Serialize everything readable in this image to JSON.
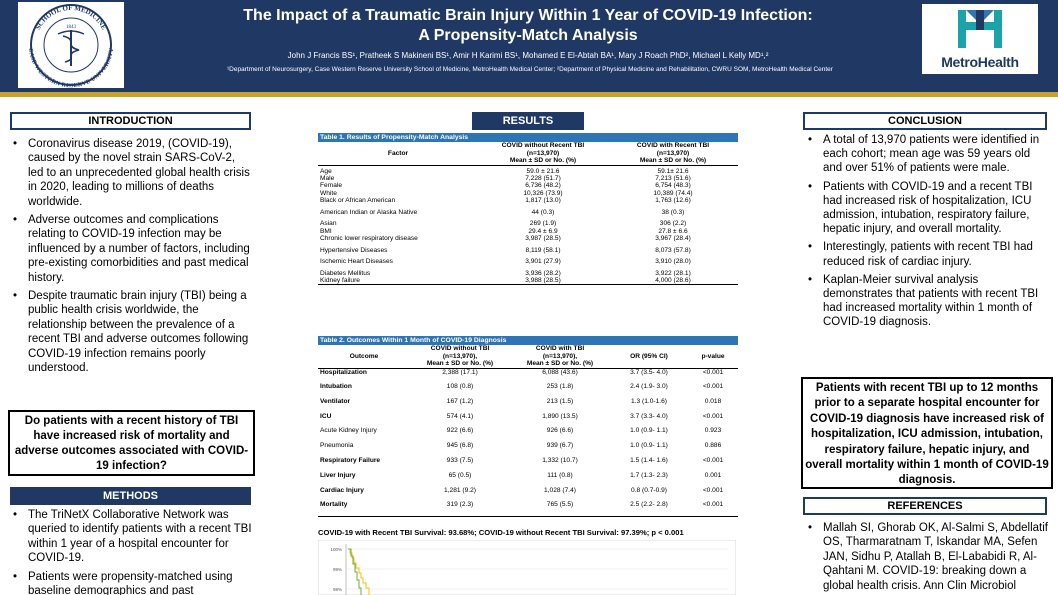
{
  "header": {
    "title_line1": "The Impact of a Traumatic Brain Injury Within 1 Year of COVID-19 Infection:",
    "title_line2": "A Propensity-Match Analysis",
    "authors": "John J Francis BS¹, Pratheek S Makineni BS¹, Amir H Karimi BS¹, Mohamed E El-Abtah BA¹, Mary J Roach PhD², Michael L Kelly MD¹,²",
    "affiliations": "¹Department of Neurosurgery, Case Western Reserve University School of Medicine, MetroHealth Medical Center; ²Department of Physical Medicine and Rehabilitation, CWRU SOM, MetroHealth Medical Center",
    "seal": {
      "top_text": "SCHOOL OF MEDICINE",
      "bottom_text": "CASE WESTERN RESERVE UNIVERSITY",
      "year": "1843"
    },
    "logo_text": "MetroHealth",
    "colors": {
      "navy": "#1f3864",
      "gold": "#c9a227",
      "table_blue": "#2e75b6",
      "logo_teal": "#1aa3a8"
    }
  },
  "introduction": {
    "heading": "INTRODUCTION",
    "bullets": [
      "Coronavirus disease 2019, (COVID-19), caused by the novel strain SARS-CoV-2, led to an unprecedented global health crisis in 2020, leading to millions of deaths worldwide.",
      "Adverse outcomes and complications relating to COVID-19 infection may be influenced by a number of factors, including pre-existing comorbidities and past medical history.",
      "Despite traumatic brain injury (TBI) being a public health crisis worldwide, the relationship between the prevalence of a recent TBI and adverse outcomes following COVID-19 infection remains poorly understood."
    ],
    "question": "Do patients with a recent history of TBI have increased risk of mortality and adverse outcomes associated with COVID-19 infection?"
  },
  "methods": {
    "heading": "METHODS",
    "bullets": [
      "The TriNetX Collaborative Network was queried to identify patients with a recent TBI within 1 year of a hospital encounter for COVID-19.",
      "Patients were propensity-matched using baseline demographics and past"
    ]
  },
  "results": {
    "heading": "RESULTS",
    "table1": {
      "caption": "Table 1. Results of Propensity-Match Analysis",
      "col_factor": "Factor",
      "col_a": [
        "COVID without Recent TBI",
        "(n=13,970)",
        "Mean ± SD or No. (%)"
      ],
      "col_b": [
        "COVID with Recent TBI",
        "(n=13,970)",
        "Mean ± SD or No. (%)"
      ],
      "rows": [
        {
          "factor": "Age",
          "a": "59.0 ± 21.6",
          "b": "59.1± 21.6"
        },
        {
          "factor": "Male",
          "a": "7,228 (51.7)",
          "b": "7,213 (51.6)"
        },
        {
          "factor": "Female",
          "a": "6,736 (48.2)",
          "b": "6,754 (48.3)"
        },
        {
          "factor": "White",
          "a": "10,326 (73.9)",
          "b": "10,389 (74.4)"
        },
        {
          "factor": "Black or African American",
          "a": "1,817 (13.0)",
          "b": "1,763 (12.6)"
        },
        {
          "factor": "American Indian or Alaska Native",
          "a": "44 (0.3)",
          "b": "38 (0.3)"
        },
        {
          "factor": "Asian",
          "a": "269 (1.9)",
          "b": "306 (2.2)"
        },
        {
          "factor": "BMI",
          "a": "29.4 ± 6.9",
          "b": "27.8 ± 6.6"
        },
        {
          "factor": "Chronic lower respiratory disease",
          "a": "3,987 (28.5)",
          "b": "3,967 (28.4)"
        },
        {
          "factor": "Hypertensive Diseases",
          "a": "8,119 (58.1)",
          "b": "8,073 (57.8)"
        },
        {
          "factor": "Ischemic Heart Diseases",
          "a": "3,901 (27.9)",
          "b": "3,910 (28.0)"
        },
        {
          "factor": "Diabetes Mellitus",
          "a": "3,936 (28.2)",
          "b": "3,922 (28.1)"
        },
        {
          "factor": "Kidney failure",
          "a": "3,988 (28.5)",
          "b": "4,000 (28.6)"
        }
      ]
    },
    "table2": {
      "caption": "Table 2. Outcomes Within 1 Month of COVID-19 Diagnosis",
      "col_outcome": "Outcome",
      "col_a": [
        "COVID without TBI",
        "(n=13,970),",
        "Mean ± SD or No. (%)"
      ],
      "col_b": [
        "COVID with TBI",
        "(n=13,970),",
        "Mean ± SD or No. (%)"
      ],
      "col_or": "OR (95% CI)",
      "col_p": "p-value",
      "rows": [
        {
          "outcome": "Hospitalization",
          "bold": true,
          "a": "2,388 (17.1)",
          "b": "6,088 (43.6)",
          "or": "3.7 (3.5- 4.0)",
          "p": "<0.001"
        },
        {
          "outcome": "Intubation",
          "bold": true,
          "a": "108 (0.8)",
          "b": "253 (1.8)",
          "or": "2.4 (1.9- 3.0)",
          "p": "<0.001"
        },
        {
          "outcome": "Ventilator",
          "bold": true,
          "a": "167 (1.2)",
          "b": "213 (1.5)",
          "or": "1.3 (1.0-1.6)",
          "p": "0.018"
        },
        {
          "outcome": "ICU",
          "bold": true,
          "a": "574 (4.1)",
          "b": "1,890 (13.5)",
          "or": "3.7 (3.3- 4.0)",
          "p": "<0.001"
        },
        {
          "outcome": "Acute Kidney Injury",
          "bold": false,
          "a": "922 (6.6)",
          "b": "926 (6.6)",
          "or": "1.0 (0.9- 1.1)",
          "p": "0.923"
        },
        {
          "outcome": "Pneumonia",
          "bold": false,
          "a": "945 (6.8)",
          "b": "939 (6.7)",
          "or": "1.0 (0.9- 1.1)",
          "p": "0.886"
        },
        {
          "outcome": "Respiratory Failure",
          "bold": true,
          "a": "933 (7.5)",
          "b": "1,332 (10.7)",
          "or": "1.5 (1.4- 1.6)",
          "p": "<0.001"
        },
        {
          "outcome": "Liver Injury",
          "bold": true,
          "a": "65 (0.5)",
          "b": "111 (0.8)",
          "or": "1.7 (1.3- 2.3)",
          "p": "0.001"
        },
        {
          "outcome": "Cardiac Injury",
          "bold": true,
          "a": "1,281 (9.2)",
          "b": "1,028 (7.4)",
          "or": "0.8 (0.7-0.9)",
          "p": "<0.001"
        },
        {
          "outcome": "Mortality",
          "bold": true,
          "a": "319 (2.3)",
          "b": "765 (5.5)",
          "or": "2.5 (2.2- 2.8)",
          "p": "<0.001"
        }
      ]
    },
    "km": {
      "title": "COVID-19 with Recent TBI Survival: 93.68%; COVID-19 without Recent TBI Survival: 97.39%; p < 0.001",
      "y_ticks": [
        "100%",
        "99%",
        "98%"
      ]
    }
  },
  "conclusion": {
    "heading": "CONCLUSION",
    "bullets": [
      "A total of 13,970 patients were identified in each cohort; mean age was 59 years old and over 51% of patients were male.",
      "Patients with COVID-19 and a recent TBI had increased risk of hospitalization, ICU admission, intubation, respiratory failure, hepatic injury, and overall mortality.",
      "Interestingly, patients with recent TBI had reduced risk of cardiac injury.",
      "Kaplan-Meier survival analysis demonstrates that patients with recent TBI had increased mortality within 1 month of COVID-19 diagnosis."
    ],
    "takeaway": "Patients with recent TBI up to 12 months prior to a separate hospital encounter for COVID-19 diagnosis have increased risk of hospitalization, ICU admission, intubation, respiratory failure, hepatic injury, and overall mortality within 1 month of COVID-19 diagnosis."
  },
  "references": {
    "heading": "REFERENCES",
    "items": [
      "Mallah SI, Ghorab OK, Al-Salmi S, Abdellatif OS, Tharmaratnam T, Iskandar MA, Sefen JAN, Sidhu P, Atallah B, El-Lababidi R, Al-Qahtani M. COVID-19: breaking down a global health crisis. Ann Clin Microbiol"
    ]
  }
}
